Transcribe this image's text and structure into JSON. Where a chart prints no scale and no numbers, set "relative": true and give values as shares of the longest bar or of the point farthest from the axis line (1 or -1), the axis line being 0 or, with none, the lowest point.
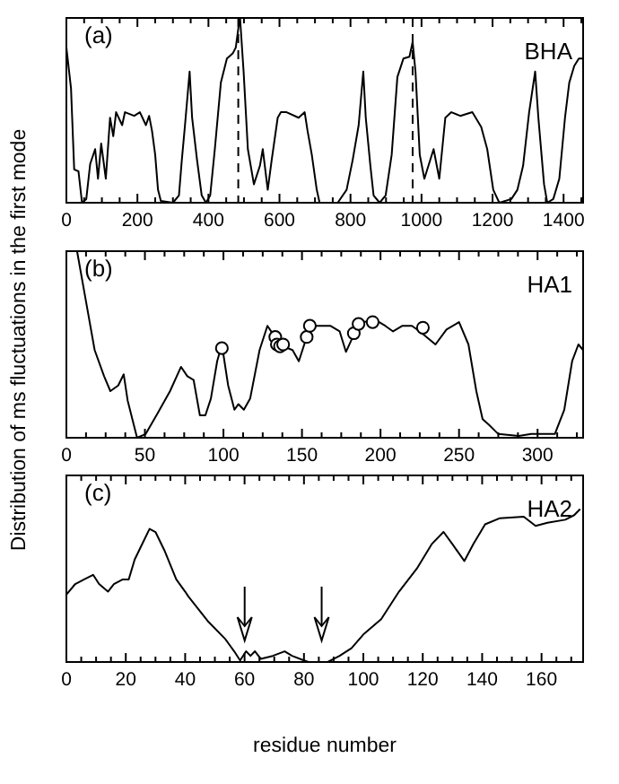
{
  "chart_data": [
    {
      "type": "line",
      "relative": true,
      "annotations": [
        "(a)",
        "BHA"
      ],
      "xlim": [
        0,
        1455
      ],
      "xticks": [
        0,
        200,
        400,
        600,
        800,
        1000,
        1200,
        1400
      ],
      "tick_labels": "x",
      "ref_lines": [
        {
          "axis": "x",
          "value": 484,
          "line_style": "dashed",
          "color": "#000000"
        },
        {
          "axis": "x",
          "value": 975,
          "line_style": "dashed",
          "color": "#000000"
        }
      ],
      "series": [
        {
          "color": "#000000",
          "x": [
            0,
            13,
            22,
            34,
            44,
            56,
            67,
            81,
            89,
            98,
            111,
            123,
            132,
            140,
            157,
            165,
            191,
            207,
            224,
            233,
            241,
            250,
            258,
            266,
            300,
            317,
            325,
            334,
            347,
            354,
            368,
            381,
            393,
            405,
            418,
            435,
            452,
            469,
            477,
            486,
            489,
            499,
            511,
            528,
            545,
            553,
            567,
            578,
            595,
            604,
            620,
            654,
            671,
            679,
            691,
            705,
            713,
            764,
            789,
            806,
            823,
            836,
            843,
            856,
            865,
            882,
            899,
            916,
            932,
            949,
            966,
            975,
            983,
            995,
            1008,
            1034,
            1050,
            1067,
            1084,
            1109,
            1143,
            1168,
            1185,
            1202,
            1219,
            1253,
            1270,
            1286,
            1303,
            1320,
            1329,
            1345,
            1354,
            1371,
            1388,
            1404,
            1416,
            1430,
            1443,
            1455
          ],
          "values": [
            0.84,
            0.62,
            0.18,
            0.17,
            0.0,
            0.02,
            0.21,
            0.29,
            0.13,
            0.32,
            0.13,
            0.46,
            0.36,
            0.49,
            0.42,
            0.49,
            0.47,
            0.49,
            0.42,
            0.47,
            0.39,
            0.26,
            0.07,
            0.01,
            0.0,
            0.04,
            0.23,
            0.42,
            0.71,
            0.46,
            0.23,
            0.04,
            0.0,
            0.04,
            0.29,
            0.65,
            0.78,
            0.81,
            0.84,
            0.97,
            1.0,
            0.71,
            0.29,
            0.1,
            0.2,
            0.29,
            0.07,
            0.23,
            0.46,
            0.49,
            0.49,
            0.46,
            0.49,
            0.39,
            0.26,
            0.07,
            0.0,
            0.0,
            0.07,
            0.23,
            0.42,
            0.71,
            0.46,
            0.2,
            0.04,
            0.0,
            0.04,
            0.26,
            0.68,
            0.78,
            0.79,
            0.87,
            0.71,
            0.26,
            0.13,
            0.29,
            0.13,
            0.46,
            0.49,
            0.47,
            0.49,
            0.41,
            0.29,
            0.07,
            0.0,
            0.02,
            0.07,
            0.2,
            0.49,
            0.71,
            0.46,
            0.1,
            0.0,
            0.02,
            0.13,
            0.46,
            0.65,
            0.74,
            0.78,
            0.78
          ]
        }
      ]
    },
    {
      "type": "line",
      "relative": true,
      "annotations": [
        "(b)",
        "HA1"
      ],
      "ylabel": "Distribution of ms fluctuations in the first mode",
      "xlim": [
        0,
        329
      ],
      "xticks": [
        0,
        50,
        100,
        150,
        200,
        250,
        300
      ],
      "tick_labels": "x",
      "series": [
        {
          "color": "#000000",
          "x": [
            6.8,
            12.5,
            18,
            24,
            28,
            33,
            36.5,
            39,
            45,
            50.5,
            58,
            66,
            73,
            77,
            81,
            85,
            88.5,
            92,
            96,
            99,
            103,
            107,
            109.5,
            113,
            117,
            123,
            128,
            132,
            138,
            144,
            148,
            153,
            159,
            168,
            174,
            178,
            184,
            189,
            197,
            203,
            208,
            214,
            220,
            225,
            235,
            242,
            250,
            256,
            261,
            265,
            269,
            275,
            288,
            296,
            311,
            317,
            322,
            326,
            329
          ],
          "values": [
            1.0,
            0.73,
            0.47,
            0.33,
            0.25,
            0.28,
            0.34,
            0.2,
            0.0,
            0.02,
            0.13,
            0.25,
            0.38,
            0.33,
            0.31,
            0.12,
            0.12,
            0.21,
            0.41,
            0.5,
            0.28,
            0.15,
            0.18,
            0.15,
            0.21,
            0.47,
            0.6,
            0.55,
            0.49,
            0.47,
            0.41,
            0.54,
            0.6,
            0.6,
            0.57,
            0.46,
            0.57,
            0.62,
            0.63,
            0.6,
            0.57,
            0.6,
            0.6,
            0.57,
            0.5,
            0.58,
            0.62,
            0.5,
            0.25,
            0.1,
            0.07,
            0.02,
            0.01,
            0.02,
            0.02,
            0.15,
            0.41,
            0.5,
            0.47
          ]
        },
        {
          "type": "scatter",
          "marker": "circle",
          "color": "#000000",
          "x": [
            99,
            133,
            134,
            136,
            138,
            153,
            155,
            183,
            186,
            195,
            227
          ],
          "values": [
            0.48,
            0.54,
            0.5,
            0.49,
            0.5,
            0.54,
            0.6,
            0.56,
            0.61,
            0.62,
            0.59
          ]
        }
      ]
    },
    {
      "type": "line",
      "relative": true,
      "annotations": [
        "(c)",
        "HA2"
      ],
      "xlabel": "residue number",
      "xlim": [
        0,
        174
      ],
      "xticks": [
        0,
        20,
        40,
        60,
        80,
        100,
        120,
        140,
        160
      ],
      "tick_labels": "x",
      "series": [
        {
          "color": "#000000",
          "x": [
            0,
            3,
            6,
            9,
            11,
            14,
            16,
            19,
            21,
            23,
            26,
            28,
            30,
            33,
            37,
            40,
            41,
            47.5,
            53.5,
            56.5,
            58.5,
            60.5,
            62,
            63.5,
            65.5,
            69.5,
            73.5,
            76,
            80,
            81.5,
            88,
            92,
            96,
            100,
            106,
            112,
            118,
            123,
            127,
            130,
            134,
            137,
            141,
            146,
            154,
            158,
            162,
            168,
            171,
            173
          ],
          "values": [
            0.44,
            0.51,
            0.54,
            0.57,
            0.51,
            0.46,
            0.51,
            0.54,
            0.54,
            0.67,
            0.79,
            0.87,
            0.85,
            0.73,
            0.54,
            0.46,
            0.43,
            0.27,
            0.15,
            0.07,
            0.01,
            0.07,
            0.04,
            0.07,
            0.02,
            0.04,
            0.07,
            0.04,
            0.01,
            0.0,
            0.0,
            0.04,
            0.09,
            0.18,
            0.28,
            0.46,
            0.61,
            0.77,
            0.85,
            0.77,
            0.66,
            0.77,
            0.9,
            0.94,
            0.95,
            0.89,
            0.91,
            0.93,
            0.96,
            1.0
          ]
        }
      ]
    }
  ]
}
